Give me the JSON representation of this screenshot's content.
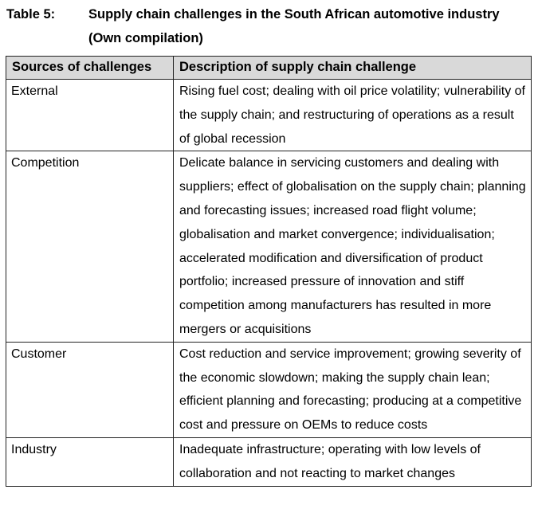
{
  "caption": {
    "label": "Table 5:",
    "title": "Supply chain challenges in the South African automotive industry (Own compilation)"
  },
  "table": {
    "headers": [
      "Sources of challenges",
      "Description of supply chain challenge"
    ],
    "rows": [
      {
        "source": "External",
        "description": "Rising fuel cost; dealing with oil price volatility; vulnerability of the supply chain; and restructuring of operations as a result of global recession"
      },
      {
        "source": "Competition",
        "description": "Delicate balance in servicing customers and dealing with suppliers; effect of globalisation on the supply chain; planning and forecasting issues; increased road flight volume; globalisation and market convergence; individualisation; accelerated modification and diversification of product portfolio; increased pressure of innovation and stiff competition among manufacturers has resulted in more mergers or acquisitions"
      },
      {
        "source": "Customer",
        "description": "Cost reduction and service improvement; growing severity of the economic slowdown; making the supply chain lean; efficient planning and forecasting; producing at a competitive cost and pressure on OEMs to reduce costs"
      },
      {
        "source": "Industry",
        "description": "Inadequate infrastructure; operating with low levels of collaboration and not reacting to market changes"
      }
    ]
  }
}
